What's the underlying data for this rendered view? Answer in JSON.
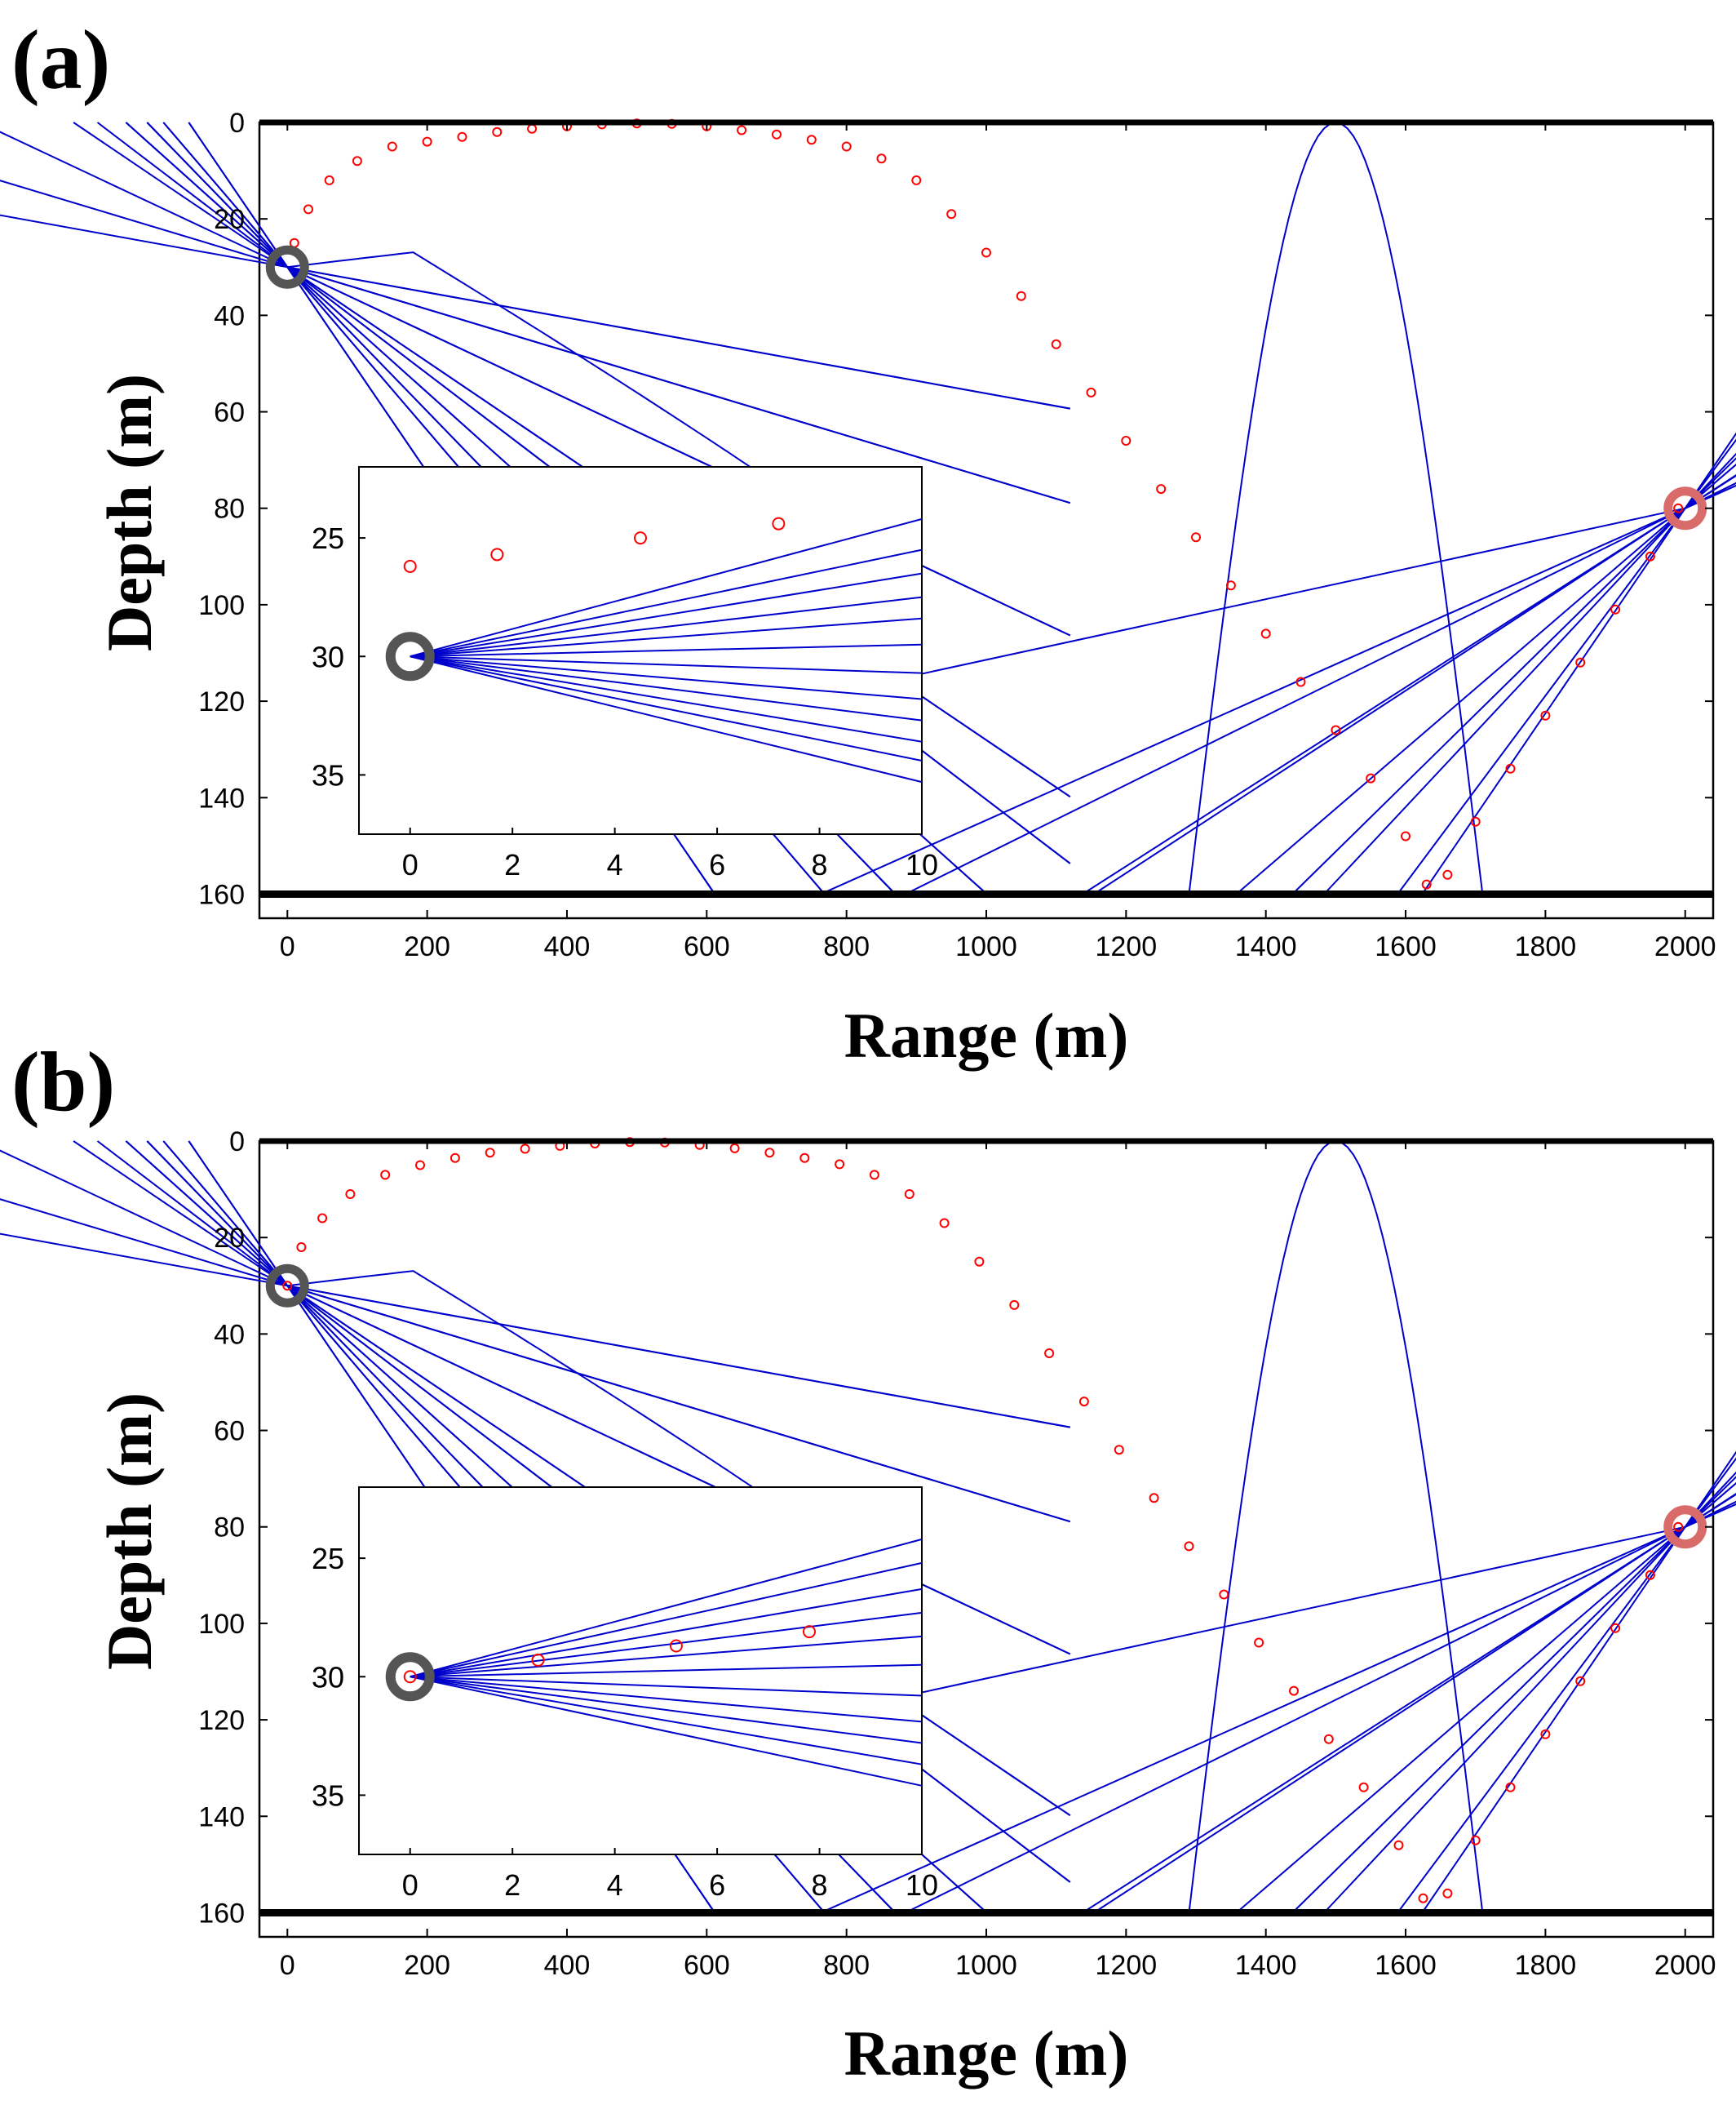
{
  "chart_data": [
    {
      "panel_label": "(a)",
      "type": "line",
      "subtype": "acoustic ray trace with path markers",
      "xlabel": "Range (m)",
      "ylabel": "Depth (m)",
      "xlim": [
        -40,
        2040
      ],
      "ylim": [
        0,
        165
      ],
      "y_inverted": true,
      "xticks": [
        0,
        200,
        400,
        600,
        800,
        1000,
        1200,
        1400,
        1600,
        1800,
        2000
      ],
      "yticks": [
        0,
        20,
        40,
        60,
        80,
        100,
        120,
        140,
        160
      ],
      "surface_depth": 0,
      "bottom_depth": 160,
      "source": {
        "name": "source",
        "range": 0,
        "depth": 30,
        "color": "#555555"
      },
      "receiver": {
        "name": "receiver",
        "range": 2000,
        "depth": 80,
        "color": "#d96b6b"
      },
      "series": [
        {
          "name": "ray paths",
          "color": "#0000cc",
          "launch_angles_deg": [
            -12,
            -9.6,
            -8.5,
            -7.4,
            -6.3,
            -5.6,
            -3.9,
            -2.5,
            -1.5,
            1.5,
            2.5,
            3.9,
            5.6,
            6.3,
            7.4,
            8.5,
            9.6,
            12
          ],
          "arrival_angles_deg": [
            -12,
            -8.8,
            -7.1,
            -5.3,
            -4.1,
            1.8,
            3.7,
            5.4,
            8.1,
            11
          ]
        },
        {
          "name": "tracked path",
          "color": "#ff0000",
          "marker": "circle",
          "points": [
            [
              10,
              25
            ],
            [
              30,
              18
            ],
            [
              60,
              12
            ],
            [
              100,
              8
            ],
            [
              150,
              5
            ],
            [
              200,
              4
            ],
            [
              250,
              3
            ],
            [
              300,
              2
            ],
            [
              350,
              1.3
            ],
            [
              400,
              0.8
            ],
            [
              450,
              0.4
            ],
            [
              500,
              0.2
            ],
            [
              550,
              0.3
            ],
            [
              600,
              0.8
            ],
            [
              650,
              1.6
            ],
            [
              700,
              2.5
            ],
            [
              750,
              3.6
            ],
            [
              800,
              5
            ],
            [
              850,
              7.5
            ],
            [
              900,
              12
            ],
            [
              950,
              19
            ],
            [
              1000,
              27
            ],
            [
              1050,
              36
            ],
            [
              1100,
              46
            ],
            [
              1150,
              56
            ],
            [
              1200,
              66
            ],
            [
              1250,
              76
            ],
            [
              1300,
              86
            ],
            [
              1350,
              96
            ],
            [
              1400,
              106
            ],
            [
              1450,
              116
            ],
            [
              1500,
              126
            ],
            [
              1550,
              136
            ],
            [
              1600,
              148
            ],
            [
              1630,
              158
            ],
            [
              1660,
              156
            ],
            [
              1700,
              145
            ],
            [
              1750,
              134
            ],
            [
              1800,
              123
            ],
            [
              1850,
              112
            ],
            [
              1900,
              101
            ],
            [
              1950,
              90
            ],
            [
              1990,
              80
            ]
          ]
        }
      ],
      "inset": {
        "xlim": [
          -1,
          10
        ],
        "ylim": [
          22,
          37.5
        ],
        "y_inverted": true,
        "xticks": [
          0,
          2,
          4,
          6,
          8,
          10
        ],
        "yticks": [
          25,
          30,
          35
        ],
        "source": {
          "range": 0,
          "depth": 30
        },
        "ray_end_depths_at_10": [
          24.2,
          25.5,
          26.5,
          27.5,
          28.4,
          29.5,
          30.7,
          31.8,
          32.7,
          33.6,
          34.4,
          35.3
        ],
        "marker_points": [
          [
            0,
            26.2
          ],
          [
            1.7,
            25.7
          ],
          [
            4.5,
            25.0
          ],
          [
            7.2,
            24.4
          ]
        ]
      }
    },
    {
      "panel_label": "(b)",
      "type": "line",
      "subtype": "acoustic ray trace with path markers",
      "xlabel": "Range (m)",
      "ylabel": "Depth (m)",
      "xlim": [
        -40,
        2040
      ],
      "ylim": [
        0,
        165
      ],
      "y_inverted": true,
      "xticks": [
        0,
        200,
        400,
        600,
        800,
        1000,
        1200,
        1400,
        1600,
        1800,
        2000
      ],
      "yticks": [
        0,
        20,
        40,
        60,
        80,
        100,
        120,
        140,
        160
      ],
      "surface_depth": 0,
      "bottom_depth": 160,
      "source": {
        "name": "source",
        "range": 0,
        "depth": 30,
        "color": "#555555"
      },
      "receiver": {
        "name": "receiver",
        "range": 2000,
        "depth": 80,
        "color": "#d96b6b"
      },
      "series": [
        {
          "name": "ray paths",
          "color": "#0000cc",
          "launch_angles_deg": [
            -12,
            -9.6,
            -8.5,
            -7.4,
            -6.3,
            -5.6,
            -3.9,
            -2.5,
            -1.5,
            1.5,
            2.5,
            3.9,
            5.6,
            6.3,
            7.4,
            8.5,
            9.6,
            12
          ],
          "arrival_angles_deg": [
            -12,
            -8.8,
            -7.1,
            -5.3,
            -4.1,
            1.8,
            3.7,
            5.4,
            8.1,
            11
          ]
        },
        {
          "name": "tracked path",
          "color": "#ff0000",
          "marker": "circle",
          "points": [
            [
              0,
              30
            ],
            [
              20,
              22
            ],
            [
              50,
              16
            ],
            [
              90,
              11
            ],
            [
              140,
              7
            ],
            [
              190,
              5
            ],
            [
              240,
              3.5
            ],
            [
              290,
              2.4
            ],
            [
              340,
              1.6
            ],
            [
              390,
              1
            ],
            [
              440,
              0.5
            ],
            [
              490,
              0.2
            ],
            [
              540,
              0.3
            ],
            [
              590,
              0.8
            ],
            [
              640,
              1.5
            ],
            [
              690,
              2.4
            ],
            [
              740,
              3.5
            ],
            [
              790,
              4.8
            ],
            [
              840,
              7
            ],
            [
              890,
              11
            ],
            [
              940,
              17
            ],
            [
              990,
              25
            ],
            [
              1040,
              34
            ],
            [
              1090,
              44
            ],
            [
              1140,
              54
            ],
            [
              1190,
              64
            ],
            [
              1240,
              74
            ],
            [
              1290,
              84
            ],
            [
              1340,
              94
            ],
            [
              1390,
              104
            ],
            [
              1440,
              114
            ],
            [
              1490,
              124
            ],
            [
              1540,
              134
            ],
            [
              1590,
              146
            ],
            [
              1625,
              157
            ],
            [
              1660,
              156
            ],
            [
              1700,
              145
            ],
            [
              1750,
              134
            ],
            [
              1800,
              123
            ],
            [
              1850,
              112
            ],
            [
              1900,
              101
            ],
            [
              1950,
              90
            ],
            [
              1990,
              80
            ]
          ]
        }
      ],
      "inset": {
        "xlim": [
          -1,
          10
        ],
        "ylim": [
          22,
          37.5
        ],
        "y_inverted": true,
        "xticks": [
          0,
          2,
          4,
          6,
          8,
          10
        ],
        "yticks": [
          25,
          30,
          35
        ],
        "source": {
          "range": 0,
          "depth": 30
        },
        "ray_end_depths_at_10": [
          24.2,
          25.2,
          26.3,
          27.3,
          28.3,
          29.5,
          30.8,
          31.9,
          32.8,
          33.7,
          34.6
        ],
        "marker_points": [
          [
            0,
            30
          ],
          [
            2.5,
            29.3
          ],
          [
            5.2,
            28.7
          ],
          [
            7.8,
            28.1
          ]
        ]
      }
    }
  ]
}
